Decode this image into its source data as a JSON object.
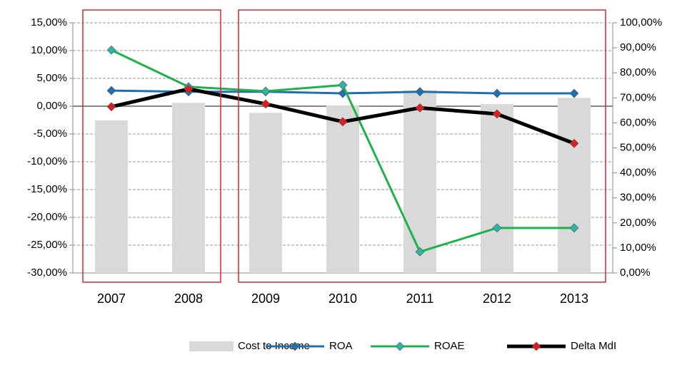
{
  "chart_data": {
    "type": "combo",
    "categories": [
      "2007",
      "2008",
      "2009",
      "2010",
      "2011",
      "2012",
      "2013"
    ],
    "series": [
      {
        "name": "Cost to Income",
        "type": "bar",
        "axis": "y2",
        "color": "#d9d9d9",
        "values": [
          61,
          68,
          64,
          67,
          73,
          67.5,
          70
        ]
      },
      {
        "name": "ROA",
        "type": "line",
        "color": "#1f6fb5",
        "marker_color": "#1f6fb5",
        "values": [
          2.8,
          2.6,
          2.6,
          2.3,
          2.6,
          2.3,
          2.3
        ]
      },
      {
        "name": "ROAE",
        "type": "line",
        "color": "#1db34a",
        "marker_color": "#2bb5a5",
        "values": [
          10.1,
          3.5,
          2.7,
          3.8,
          -26.2,
          -21.9,
          -21.9
        ]
      },
      {
        "name": "Delta MdI",
        "type": "line",
        "color": "#000000",
        "marker_color": "#e41a1c",
        "values": [
          -0.1,
          3.1,
          0.4,
          -2.8,
          -0.3,
          -1.4,
          -6.7
        ]
      }
    ],
    "ylim": [
      -30,
      15
    ],
    "yticks": [
      {
        "value": -30,
        "label": "-30,00%"
      },
      {
        "value": -25,
        "label": "-25,00%"
      },
      {
        "value": -20,
        "label": "-20,00%"
      },
      {
        "value": -15,
        "label": "-15,00%"
      },
      {
        "value": -10,
        "label": "-10,00%"
      },
      {
        "value": -5,
        "label": "-5,00%"
      },
      {
        "value": 0,
        "label": "0,00%"
      },
      {
        "value": 5,
        "label": "5,00%"
      },
      {
        "value": 10,
        "label": "10,00%"
      },
      {
        "value": 15,
        "label": "15,00%"
      }
    ],
    "y2lim": [
      0,
      100
    ],
    "y2ticks": [
      {
        "value": 0,
        "label": "0,00%"
      },
      {
        "value": 10,
        "label": "10,00%"
      },
      {
        "value": 20,
        "label": "20,00%"
      },
      {
        "value": 30,
        "label": "30,00%"
      },
      {
        "value": 40,
        "label": "40,00%"
      },
      {
        "value": 50,
        "label": "50,00%"
      },
      {
        "value": 60,
        "label": "60,00%"
      },
      {
        "value": 70,
        "label": "70,00%"
      },
      {
        "value": 80,
        "label": "80,00%"
      },
      {
        "value": 90,
        "label": "90,00%"
      },
      {
        "value": 100,
        "label": "100,00%"
      }
    ],
    "grid": true,
    "legend": "bottom"
  }
}
